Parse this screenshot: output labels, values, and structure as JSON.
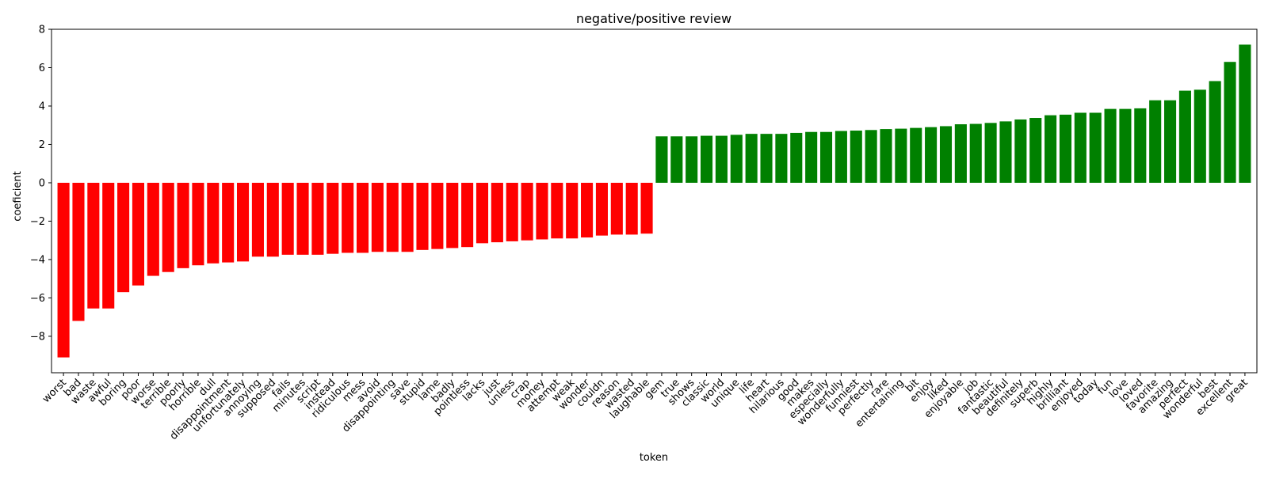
{
  "chart_data": {
    "type": "bar",
    "title": "negative/positive review",
    "xlabel": "token",
    "ylabel": "coeficient",
    "ylim": [
      -9.9,
      8.0
    ],
    "yticks": [
      -8,
      -6,
      -4,
      -2,
      0,
      2,
      4,
      6,
      8
    ],
    "ytick_labels": [
      "−8",
      "−6",
      "−4",
      "−2",
      "0",
      "2",
      "4",
      "6",
      "8"
    ],
    "grid": false,
    "colors": {
      "negative": "#ff0000",
      "positive": "#008000"
    },
    "categories": [
      "worst",
      "bad",
      "waste",
      "awful",
      "boring",
      "poor",
      "worse",
      "terrible",
      "poorly",
      "horrible",
      "dull",
      "disappointment",
      "unfortunately",
      "annoying",
      "supposed",
      "fails",
      "minutes",
      "script",
      "instead",
      "ridiculous",
      "mess",
      "avoid",
      "disappointing",
      "save",
      "stupid",
      "lame",
      "badly",
      "pointless",
      "lacks",
      "just",
      "unless",
      "crap",
      "money",
      "attempt",
      "weak",
      "wonder",
      "couldn",
      "reason",
      "wasted",
      "laughable",
      "gem",
      "true",
      "shows",
      "classic",
      "world",
      "unique",
      "life",
      "heart",
      "hilarious",
      "good",
      "makes",
      "especially",
      "wonderfully",
      "funniest",
      "perfectly",
      "rare",
      "entertaining",
      "bit",
      "enjoy",
      "liked",
      "enjoyable",
      "job",
      "fantastic",
      "beautiful",
      "definitely",
      "superb",
      "highly",
      "brilliant",
      "enjoyed",
      "today",
      "fun",
      "love",
      "loved",
      "favorite",
      "amazing",
      "perfect",
      "wonderful",
      "best",
      "excellent",
      "great"
    ],
    "values": [
      -9.1,
      -7.2,
      -6.55,
      -6.55,
      -5.7,
      -5.35,
      -4.85,
      -4.65,
      -4.45,
      -4.3,
      -4.2,
      -4.15,
      -4.1,
      -3.85,
      -3.85,
      -3.75,
      -3.75,
      -3.75,
      -3.7,
      -3.65,
      -3.65,
      -3.6,
      -3.6,
      -3.6,
      -3.5,
      -3.45,
      -3.4,
      -3.35,
      -3.15,
      -3.1,
      -3.05,
      -3.0,
      -2.95,
      -2.9,
      -2.9,
      -2.85,
      -2.75,
      -2.7,
      -2.7,
      -2.65,
      2.42,
      2.42,
      2.42,
      2.45,
      2.45,
      2.5,
      2.55,
      2.55,
      2.55,
      2.6,
      2.65,
      2.65,
      2.7,
      2.72,
      2.75,
      2.8,
      2.82,
      2.86,
      2.9,
      2.95,
      3.05,
      3.07,
      3.12,
      3.2,
      3.3,
      3.38,
      3.52,
      3.55,
      3.65,
      3.65,
      3.85,
      3.85,
      3.88,
      4.3,
      4.3,
      4.8,
      4.85,
      5.3,
      6.3,
      7.2
    ]
  }
}
